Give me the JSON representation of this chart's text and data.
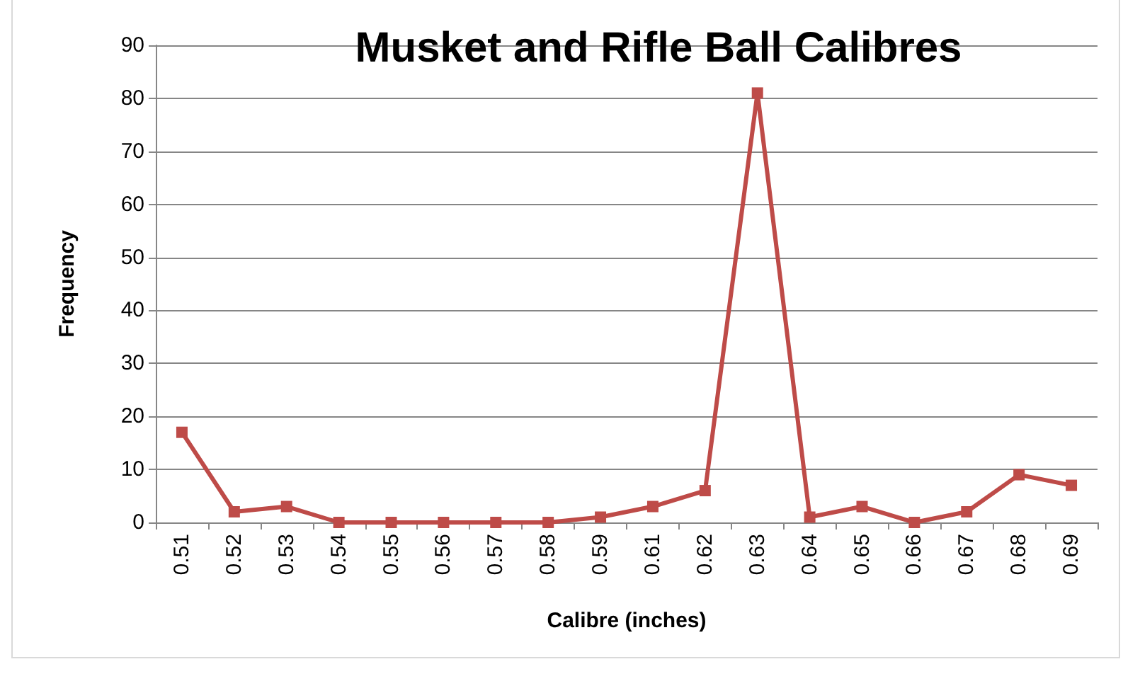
{
  "chart_data": {
    "type": "line",
    "title": "Musket and Rifle Ball Calibres",
    "xlabel": "Calibre (inches)",
    "ylabel": "Frequency",
    "categories": [
      "0.51",
      "0.52",
      "0.53",
      "0.54",
      "0.55",
      "0.56",
      "0.57",
      "0.58",
      "0.59",
      "0.61",
      "0.62",
      "0.63",
      "0.64",
      "0.65",
      "0.66",
      "0.67",
      "0.68",
      "0.69"
    ],
    "series": [
      {
        "color": "#be4b48",
        "values": [
          17,
          2,
          3,
          0,
          0,
          0,
          0,
          0,
          1,
          3,
          6,
          81,
          1,
          3,
          0,
          2,
          9,
          7
        ]
      }
    ],
    "ylim": [
      0,
      90
    ],
    "yticks": [
      0,
      10,
      20,
      30,
      40,
      50,
      60,
      70,
      80,
      90
    ],
    "grid": "y",
    "marker": "square",
    "line_style": "solid"
  }
}
